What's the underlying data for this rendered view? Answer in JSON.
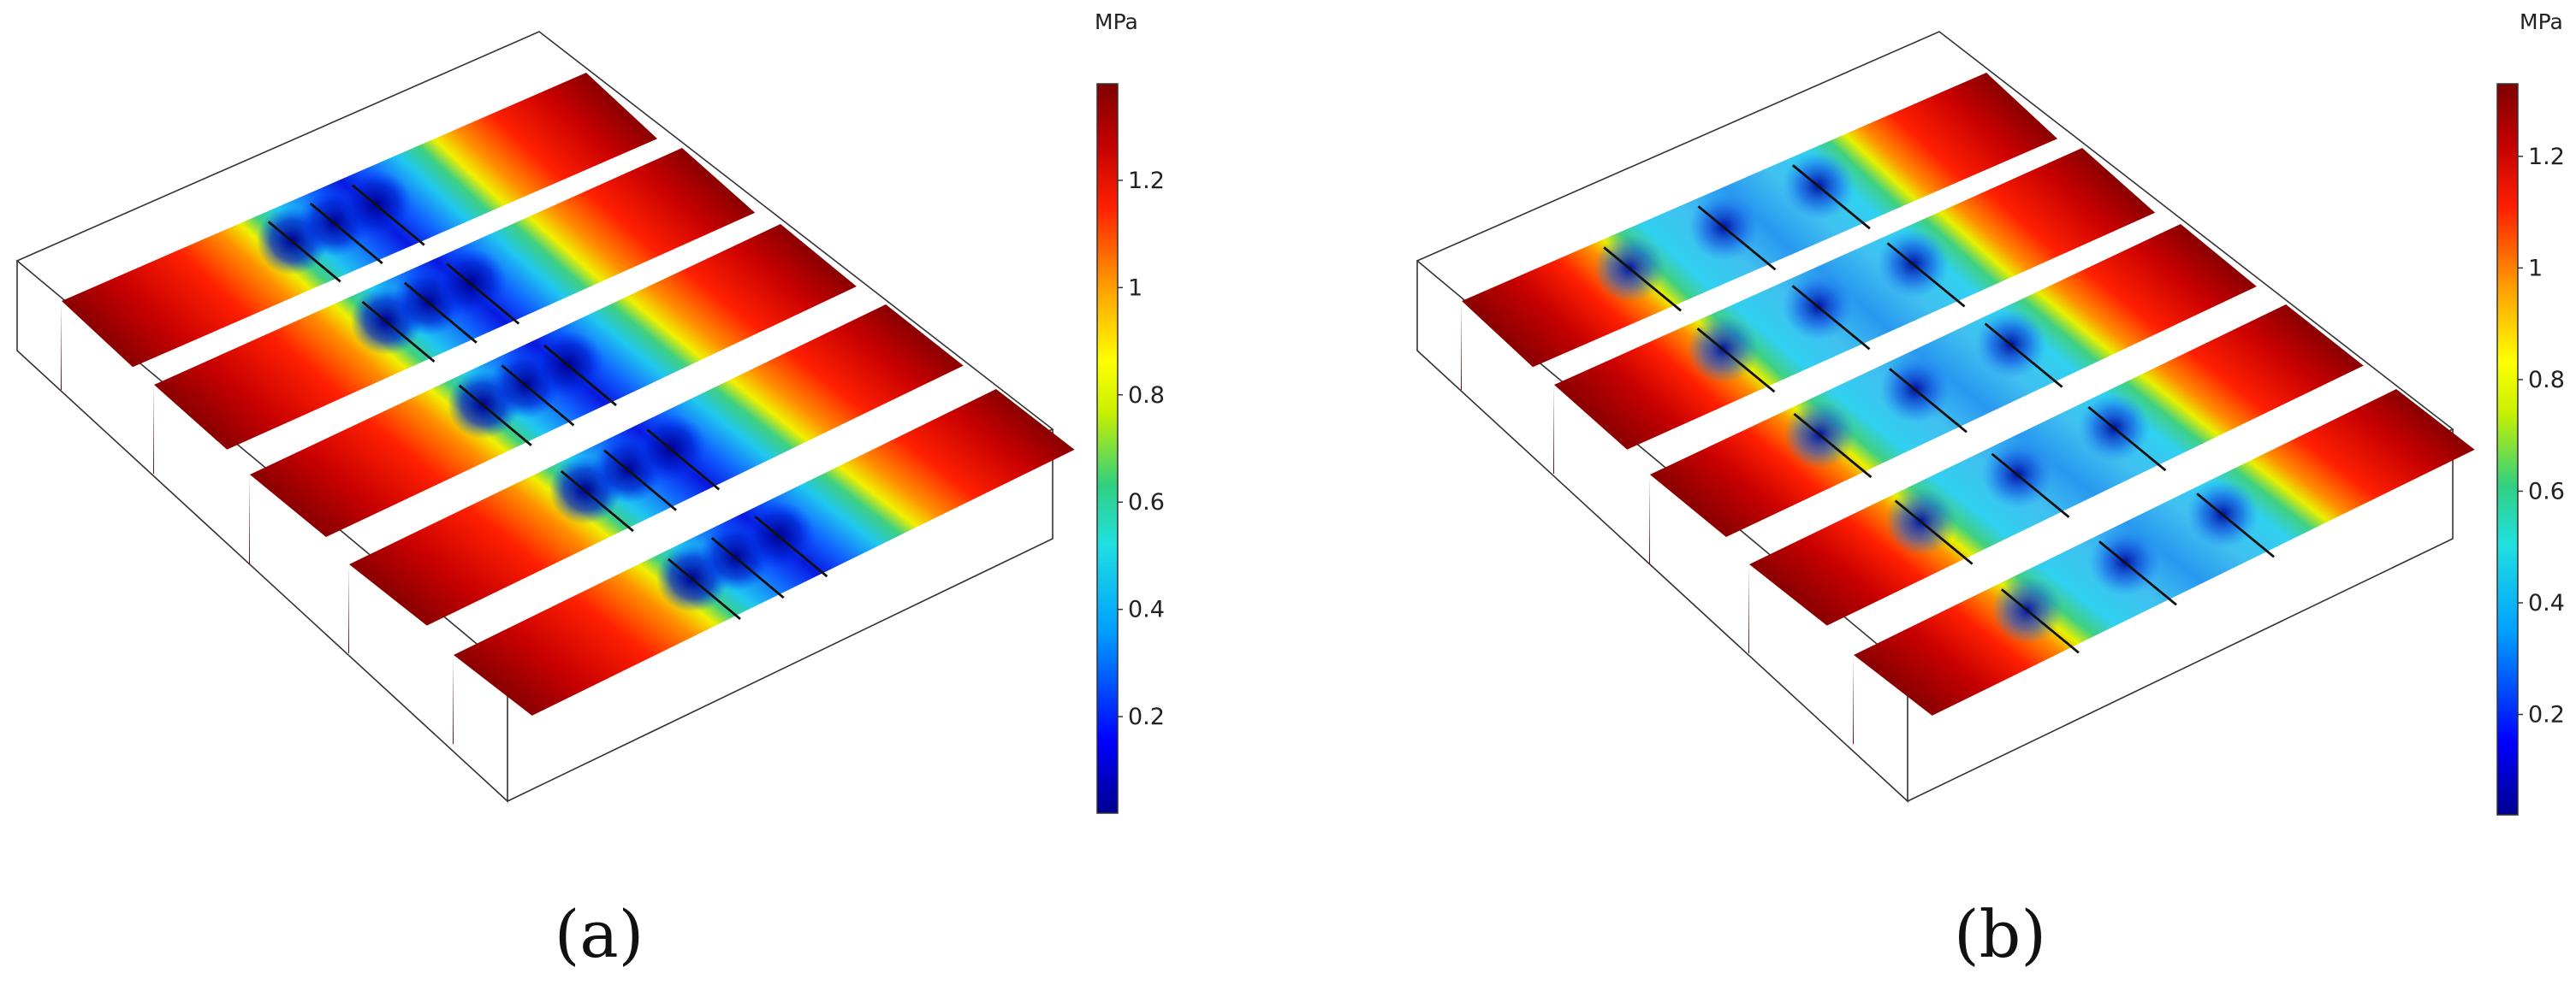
{
  "panels": [
    {
      "id": "a",
      "caption": "(a)",
      "unit": "MPa",
      "ticks": [
        "1.2",
        "1",
        "0.8",
        "0.6",
        "0.4",
        "0.2"
      ],
      "tick_values": [
        1.2,
        1.0,
        0.8,
        0.6,
        0.4,
        0.2
      ],
      "range": [
        0.02,
        1.38
      ]
    },
    {
      "id": "b",
      "caption": "(b)",
      "unit": "MPa",
      "ticks": [
        "1.2",
        "1",
        "0.8",
        "0.6",
        "0.4",
        "0.2"
      ],
      "tick_values": [
        1.2,
        1.0,
        0.8,
        0.6,
        0.4,
        0.2
      ],
      "range": [
        0.02,
        1.33
      ]
    }
  ],
  "colormap": [
    "#00008f",
    "#0000ff",
    "#00a0ff",
    "#20e0e0",
    "#30d080",
    "#c8f000",
    "#ffff00",
    "#ffa000",
    "#ff2000",
    "#c00000",
    "#800000"
  ]
}
